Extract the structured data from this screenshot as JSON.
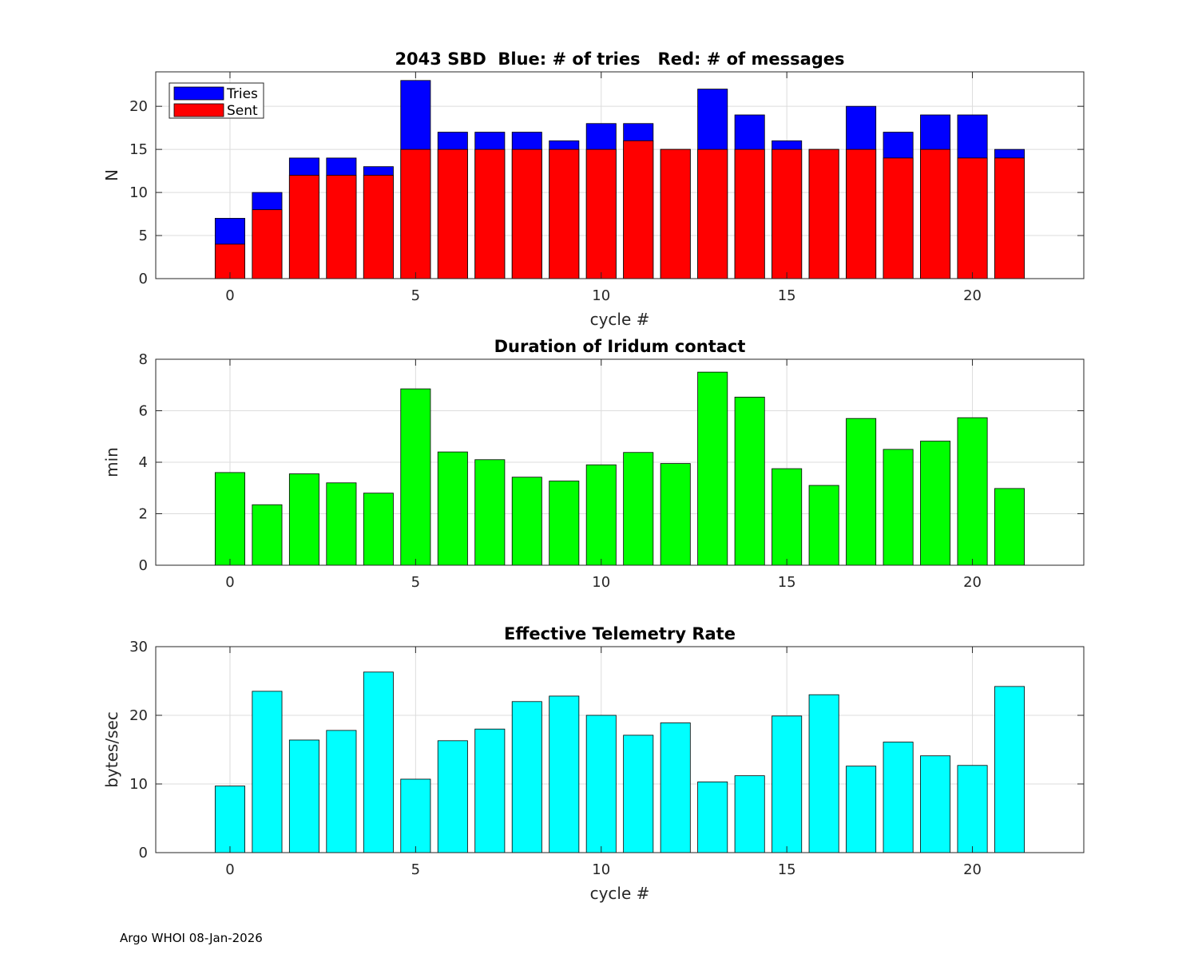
{
  "footer": "Argo WHOI 08-Jan-2026",
  "chart_data": [
    {
      "type": "bar",
      "stacked": "overlay",
      "title": "2043 SBD  Blue: # of tries   Red: # of messages",
      "xlabel": "cycle #",
      "ylabel": "N",
      "xlim": [
        -2,
        23
      ],
      "ylim": [
        0,
        24
      ],
      "xticks": [
        0,
        5,
        10,
        15,
        20
      ],
      "yticks": [
        0,
        5,
        10,
        15,
        20
      ],
      "grid": true,
      "legend": {
        "position": "top-left",
        "entries": [
          "Tries",
          "Sent"
        ]
      },
      "x": [
        0,
        1,
        2,
        3,
        4,
        5,
        6,
        7,
        8,
        9,
        10,
        11,
        12,
        13,
        14,
        15,
        16,
        17,
        18,
        19,
        20,
        21
      ],
      "series": [
        {
          "name": "Tries",
          "color": "#0000ff",
          "values": [
            7,
            10,
            14,
            14,
            13,
            23,
            17,
            17,
            17,
            16,
            18,
            18,
            15,
            22,
            19,
            16,
            15,
            20,
            17,
            19,
            19,
            15
          ]
        },
        {
          "name": "Sent",
          "color": "#ff0000",
          "values": [
            4,
            8,
            12,
            12,
            12,
            15,
            15,
            15,
            15,
            15,
            15,
            16,
            15,
            15,
            15,
            15,
            15,
            15,
            14,
            15,
            14,
            14
          ]
        }
      ]
    },
    {
      "type": "bar",
      "title": "Duration of Iridum contact",
      "xlabel": "",
      "ylabel": "min",
      "xlim": [
        -2,
        23
      ],
      "ylim": [
        0,
        8
      ],
      "xticks": [
        0,
        5,
        10,
        15,
        20
      ],
      "yticks": [
        0,
        2,
        4,
        6,
        8
      ],
      "grid": true,
      "x": [
        0,
        1,
        2,
        3,
        4,
        5,
        6,
        7,
        8,
        9,
        10,
        11,
        12,
        13,
        14,
        15,
        16,
        17,
        18,
        19,
        20,
        21
      ],
      "series": [
        {
          "name": "Duration",
          "color": "#00ff00",
          "values": [
            3.6,
            2.35,
            3.55,
            3.2,
            2.8,
            6.85,
            4.4,
            4.1,
            3.42,
            3.27,
            3.9,
            4.38,
            3.95,
            7.5,
            6.53,
            3.75,
            3.1,
            5.7,
            4.5,
            4.82,
            5.73,
            2.98
          ]
        }
      ]
    },
    {
      "type": "bar",
      "title": "Effective Telemetry Rate",
      "xlabel": "cycle #",
      "ylabel": "bytes/sec",
      "xlim": [
        -2,
        23
      ],
      "ylim": [
        0,
        30
      ],
      "xticks": [
        0,
        5,
        10,
        15,
        20
      ],
      "yticks": [
        0,
        10,
        20,
        30
      ],
      "grid": true,
      "x": [
        0,
        1,
        2,
        3,
        4,
        5,
        6,
        7,
        8,
        9,
        10,
        11,
        12,
        13,
        14,
        15,
        16,
        17,
        18,
        19,
        20,
        21
      ],
      "series": [
        {
          "name": "Rate",
          "color": "#00ffff",
          "values": [
            9.7,
            23.5,
            16.4,
            17.8,
            26.3,
            10.7,
            16.3,
            18.0,
            22.0,
            22.8,
            20.0,
            17.1,
            18.9,
            10.3,
            11.2,
            19.9,
            23.0,
            12.6,
            16.1,
            14.1,
            12.7,
            24.2
          ]
        }
      ]
    }
  ]
}
